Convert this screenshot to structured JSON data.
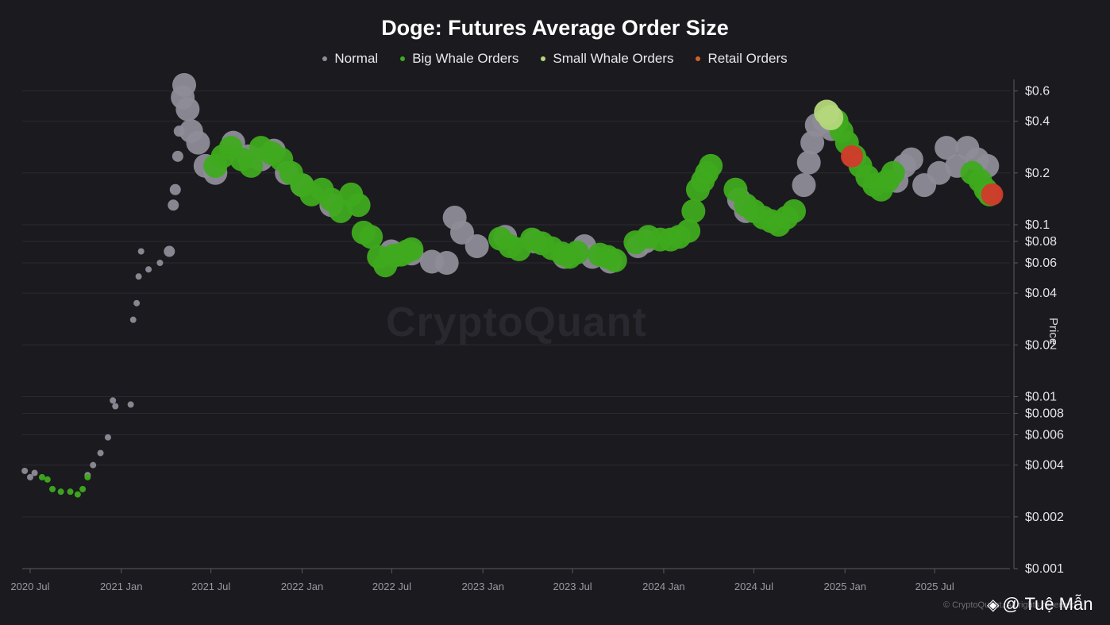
{
  "chart_data": {
    "type": "scatter",
    "title": "Doge: Futures Average Order Size",
    "ylabel": "Price",
    "yscale": "log",
    "ylim": [
      0.001,
      0.7
    ],
    "y_ticks": [
      "$0.6",
      "$0.4",
      "$0.2",
      "$0.1",
      "$0.08",
      "$0.06",
      "$0.04",
      "$0.02",
      "$0.01",
      "$0.008",
      "$0.006",
      "$0.004",
      "$0.002",
      "$0.001"
    ],
    "y_tick_values": [
      0.6,
      0.4,
      0.2,
      0.1,
      0.08,
      0.06,
      0.04,
      0.02,
      0.01,
      0.008,
      0.006,
      0.004,
      0.002,
      0.001
    ],
    "x_ticks": [
      "2020 Jul",
      "2021 Jan",
      "2021 Jul",
      "2022 Jan",
      "2022 Jul",
      "2023 Jan",
      "2023 Jul",
      "2024 Jan",
      "2024 Jul",
      "2025 Jan",
      "2025 Jul"
    ],
    "x_tick_values": [
      "2020-07-01",
      "2021-01-01",
      "2021-07-01",
      "2022-01-01",
      "2022-07-01",
      "2023-01-01",
      "2023-07-01",
      "2024-01-01",
      "2024-07-01",
      "2025-01-01",
      "2025-07-01"
    ],
    "xlim": [
      "2020-06-15",
      "2025-11-30"
    ],
    "legend_position": "top-center",
    "grid": true,
    "series": [
      {
        "name": "Normal",
        "color": "#8e8c98",
        "points": [
          [
            "2020-06-20",
            0.0037
          ],
          [
            "2020-07-01",
            0.0034
          ],
          [
            "2020-07-10",
            0.0036
          ],
          [
            "2020-10-25",
            0.0035
          ],
          [
            "2020-11-05",
            0.004
          ],
          [
            "2020-11-20",
            0.0047
          ],
          [
            "2020-12-05",
            0.0058
          ],
          [
            "2020-12-15",
            0.0095
          ],
          [
            "2020-12-20",
            0.0088
          ],
          [
            "2021-01-20",
            0.009
          ],
          [
            "2021-01-25",
            0.028
          ],
          [
            "2021-02-01",
            0.035
          ],
          [
            "2021-02-05",
            0.05
          ],
          [
            "2021-02-10",
            0.07
          ],
          [
            "2021-02-25",
            0.055
          ],
          [
            "2021-03-20",
            0.06
          ],
          [
            "2021-04-08",
            0.07
          ],
          [
            "2021-04-16",
            0.13
          ],
          [
            "2021-04-20",
            0.16
          ],
          [
            "2021-04-25",
            0.25
          ],
          [
            "2021-04-28",
            0.35
          ],
          [
            "2021-05-05",
            0.55
          ],
          [
            "2021-05-08",
            0.65
          ],
          [
            "2021-05-15",
            0.47
          ],
          [
            "2021-05-22",
            0.35
          ],
          [
            "2021-06-05",
            0.3
          ],
          [
            "2021-06-20",
            0.22
          ],
          [
            "2021-07-10",
            0.2
          ],
          [
            "2021-08-15",
            0.3
          ],
          [
            "2021-09-15",
            0.25
          ],
          [
            "2021-10-10",
            0.24
          ],
          [
            "2021-11-05",
            0.27
          ],
          [
            "2021-12-01",
            0.2
          ],
          [
            "2022-01-01",
            0.17
          ],
          [
            "2022-03-01",
            0.13
          ],
          [
            "2022-06-30",
            0.07
          ],
          [
            "2022-08-10",
            0.068
          ],
          [
            "2022-09-20",
            0.061
          ],
          [
            "2022-10-20",
            0.06
          ],
          [
            "2022-11-05",
            0.11
          ],
          [
            "2022-11-20",
            0.09
          ],
          [
            "2022-12-20",
            0.075
          ],
          [
            "2023-02-15",
            0.085
          ],
          [
            "2023-04-15",
            0.08
          ],
          [
            "2023-06-15",
            0.065
          ],
          [
            "2023-07-25",
            0.075
          ],
          [
            "2023-08-10",
            0.065
          ],
          [
            "2023-09-15",
            0.061
          ],
          [
            "2023-11-10",
            0.075
          ],
          [
            "2023-11-25",
            0.08
          ],
          [
            "2024-06-01",
            0.14
          ],
          [
            "2024-06-15",
            0.12
          ],
          [
            "2024-10-10",
            0.17
          ],
          [
            "2024-10-20",
            0.23
          ],
          [
            "2024-10-27",
            0.3
          ],
          [
            "2024-11-05",
            0.38
          ],
          [
            "2024-11-20",
            0.4
          ],
          [
            "2024-12-05",
            0.36
          ],
          [
            "2025-04-15",
            0.18
          ],
          [
            "2025-05-01",
            0.22
          ],
          [
            "2025-05-15",
            0.24
          ],
          [
            "2025-06-10",
            0.17
          ],
          [
            "2025-07-10",
            0.2
          ],
          [
            "2025-07-25",
            0.28
          ],
          [
            "2025-08-15",
            0.22
          ],
          [
            "2025-09-05",
            0.28
          ],
          [
            "2025-09-25",
            0.24
          ],
          [
            "2025-10-15",
            0.22
          ]
        ]
      },
      {
        "name": "Big Whale Orders",
        "color": "#3faa1f",
        "points": [
          [
            "2020-07-25",
            0.0034
          ],
          [
            "2020-08-05",
            0.0033
          ],
          [
            "2020-08-15",
            0.0029
          ],
          [
            "2020-09-01",
            0.0028
          ],
          [
            "2020-09-20",
            0.0028
          ],
          [
            "2020-10-05",
            0.0027
          ],
          [
            "2020-10-15",
            0.0029
          ],
          [
            "2020-10-25",
            0.0034
          ],
          [
            "2021-07-10",
            0.22
          ],
          [
            "2021-07-25",
            0.25
          ],
          [
            "2021-08-10",
            0.28
          ],
          [
            "2021-09-01",
            0.24
          ],
          [
            "2021-09-20",
            0.22
          ],
          [
            "2021-10-10",
            0.28
          ],
          [
            "2021-11-01",
            0.26
          ],
          [
            "2021-11-20",
            0.24
          ],
          [
            "2021-12-10",
            0.2
          ],
          [
            "2022-01-01",
            0.17
          ],
          [
            "2022-01-20",
            0.15
          ],
          [
            "2022-02-10",
            0.16
          ],
          [
            "2022-03-01",
            0.14
          ],
          [
            "2022-03-20",
            0.12
          ],
          [
            "2022-04-10",
            0.15
          ],
          [
            "2022-04-25",
            0.13
          ],
          [
            "2022-05-05",
            0.09
          ],
          [
            "2022-05-20",
            0.085
          ],
          [
            "2022-06-05",
            0.065
          ],
          [
            "2022-06-18",
            0.058
          ],
          [
            "2022-07-05",
            0.066
          ],
          [
            "2022-07-20",
            0.067
          ],
          [
            "2022-08-01",
            0.07
          ],
          [
            "2022-08-10",
            0.072
          ],
          [
            "2023-02-05",
            0.083
          ],
          [
            "2023-02-25",
            0.075
          ],
          [
            "2023-03-15",
            0.072
          ],
          [
            "2023-04-10",
            0.082
          ],
          [
            "2023-04-30",
            0.078
          ],
          [
            "2023-05-20",
            0.073
          ],
          [
            "2023-06-10",
            0.068
          ],
          [
            "2023-06-25",
            0.065
          ],
          [
            "2023-07-10",
            0.069
          ],
          [
            "2023-08-25",
            0.067
          ],
          [
            "2023-09-10",
            0.065
          ],
          [
            "2023-09-25",
            0.062
          ],
          [
            "2023-11-05",
            0.079
          ],
          [
            "2023-12-01",
            0.085
          ],
          [
            "2023-12-25",
            0.082
          ],
          [
            "2024-01-15",
            0.082
          ],
          [
            "2024-02-01",
            0.085
          ],
          [
            "2024-02-20",
            0.092
          ],
          [
            "2024-03-01",
            0.12
          ],
          [
            "2024-03-10",
            0.16
          ],
          [
            "2024-03-20",
            0.18
          ],
          [
            "2024-03-28",
            0.2
          ],
          [
            "2024-04-05",
            0.22
          ],
          [
            "2024-05-25",
            0.16
          ],
          [
            "2024-06-15",
            0.13
          ],
          [
            "2024-07-01",
            0.12
          ],
          [
            "2024-07-20",
            0.11
          ],
          [
            "2024-08-05",
            0.105
          ],
          [
            "2024-08-20",
            0.1
          ],
          [
            "2024-09-05",
            0.11
          ],
          [
            "2024-09-20",
            0.12
          ],
          [
            "2024-12-15",
            0.4
          ],
          [
            "2024-12-25",
            0.35
          ],
          [
            "2025-01-05",
            0.3
          ],
          [
            "2025-01-20",
            0.25
          ],
          [
            "2025-02-01",
            0.22
          ],
          [
            "2025-02-15",
            0.19
          ],
          [
            "2025-03-01",
            0.17
          ],
          [
            "2025-03-15",
            0.16
          ],
          [
            "2025-03-28",
            0.18
          ],
          [
            "2025-04-08",
            0.2
          ],
          [
            "2025-09-15",
            0.2
          ],
          [
            "2025-10-01",
            0.18
          ],
          [
            "2025-10-12",
            0.16
          ],
          [
            "2025-10-20",
            0.15
          ]
        ]
      },
      {
        "name": "Small Whale Orders",
        "color": "#b4d77b",
        "points": [
          [
            "2024-11-25",
            0.45
          ],
          [
            "2024-12-03",
            0.42
          ]
        ]
      },
      {
        "name": "Retail Orders",
        "color": "#d23a2b",
        "points": [
          [
            "2025-01-15",
            0.25
          ],
          [
            "2025-10-25",
            0.15
          ]
        ]
      }
    ]
  },
  "watermark": "CryptoQuant",
  "credit": "© CryptoQuant. All rights reserved",
  "handle": "@ Tuệ Mẫn"
}
